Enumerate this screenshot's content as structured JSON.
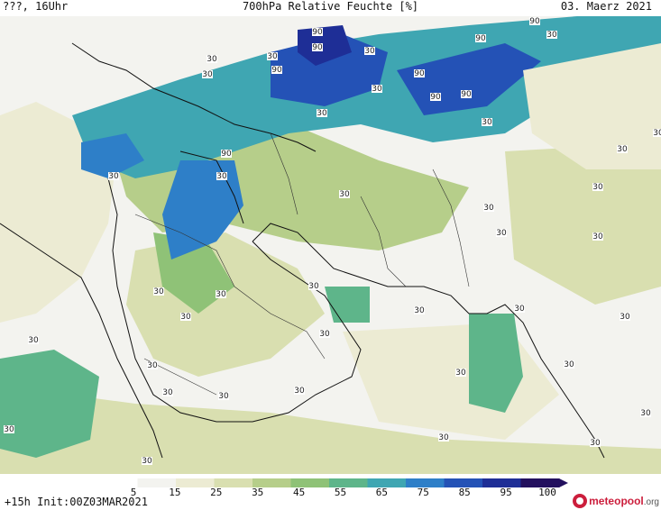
{
  "header": {
    "left": "???, 16Uhr",
    "title": "700hPa Relative Feuchte [%]",
    "date": "03. Maerz 2021"
  },
  "footer": {
    "run_info": "+15h Init:00Z03MAR2021",
    "brand_name": "meteopool",
    "brand_tld": ".org"
  },
  "colorbar": {
    "tick_labels": [
      "5",
      "15",
      "25",
      "35",
      "45",
      "55",
      "65",
      "75",
      "85",
      "95",
      "100"
    ],
    "colors": [
      "#ffffff",
      "#f3f3ef",
      "#ecebd3",
      "#d9dfb0",
      "#b6ce8a",
      "#8fc277",
      "#5eb58a",
      "#3fa6b2",
      "#2e7fc8",
      "#2452b6",
      "#1e2e96",
      "#23105e"
    ]
  },
  "map": {
    "contour_labels": [
      "90",
      "90",
      "30",
      "90",
      "90",
      "30",
      "90",
      "30",
      "90",
      "90",
      "90",
      "30",
      "30",
      "90",
      "30",
      "30",
      "30",
      "30",
      "30",
      "30",
      "30",
      "30",
      "30",
      "30",
      "30",
      "30",
      "30",
      "30",
      "30",
      "30",
      "30",
      "30",
      "30",
      "30",
      "30",
      "30",
      "30",
      "30",
      "30",
      "30",
      "30",
      "30",
      "30",
      "30",
      "30",
      "30"
    ]
  }
}
